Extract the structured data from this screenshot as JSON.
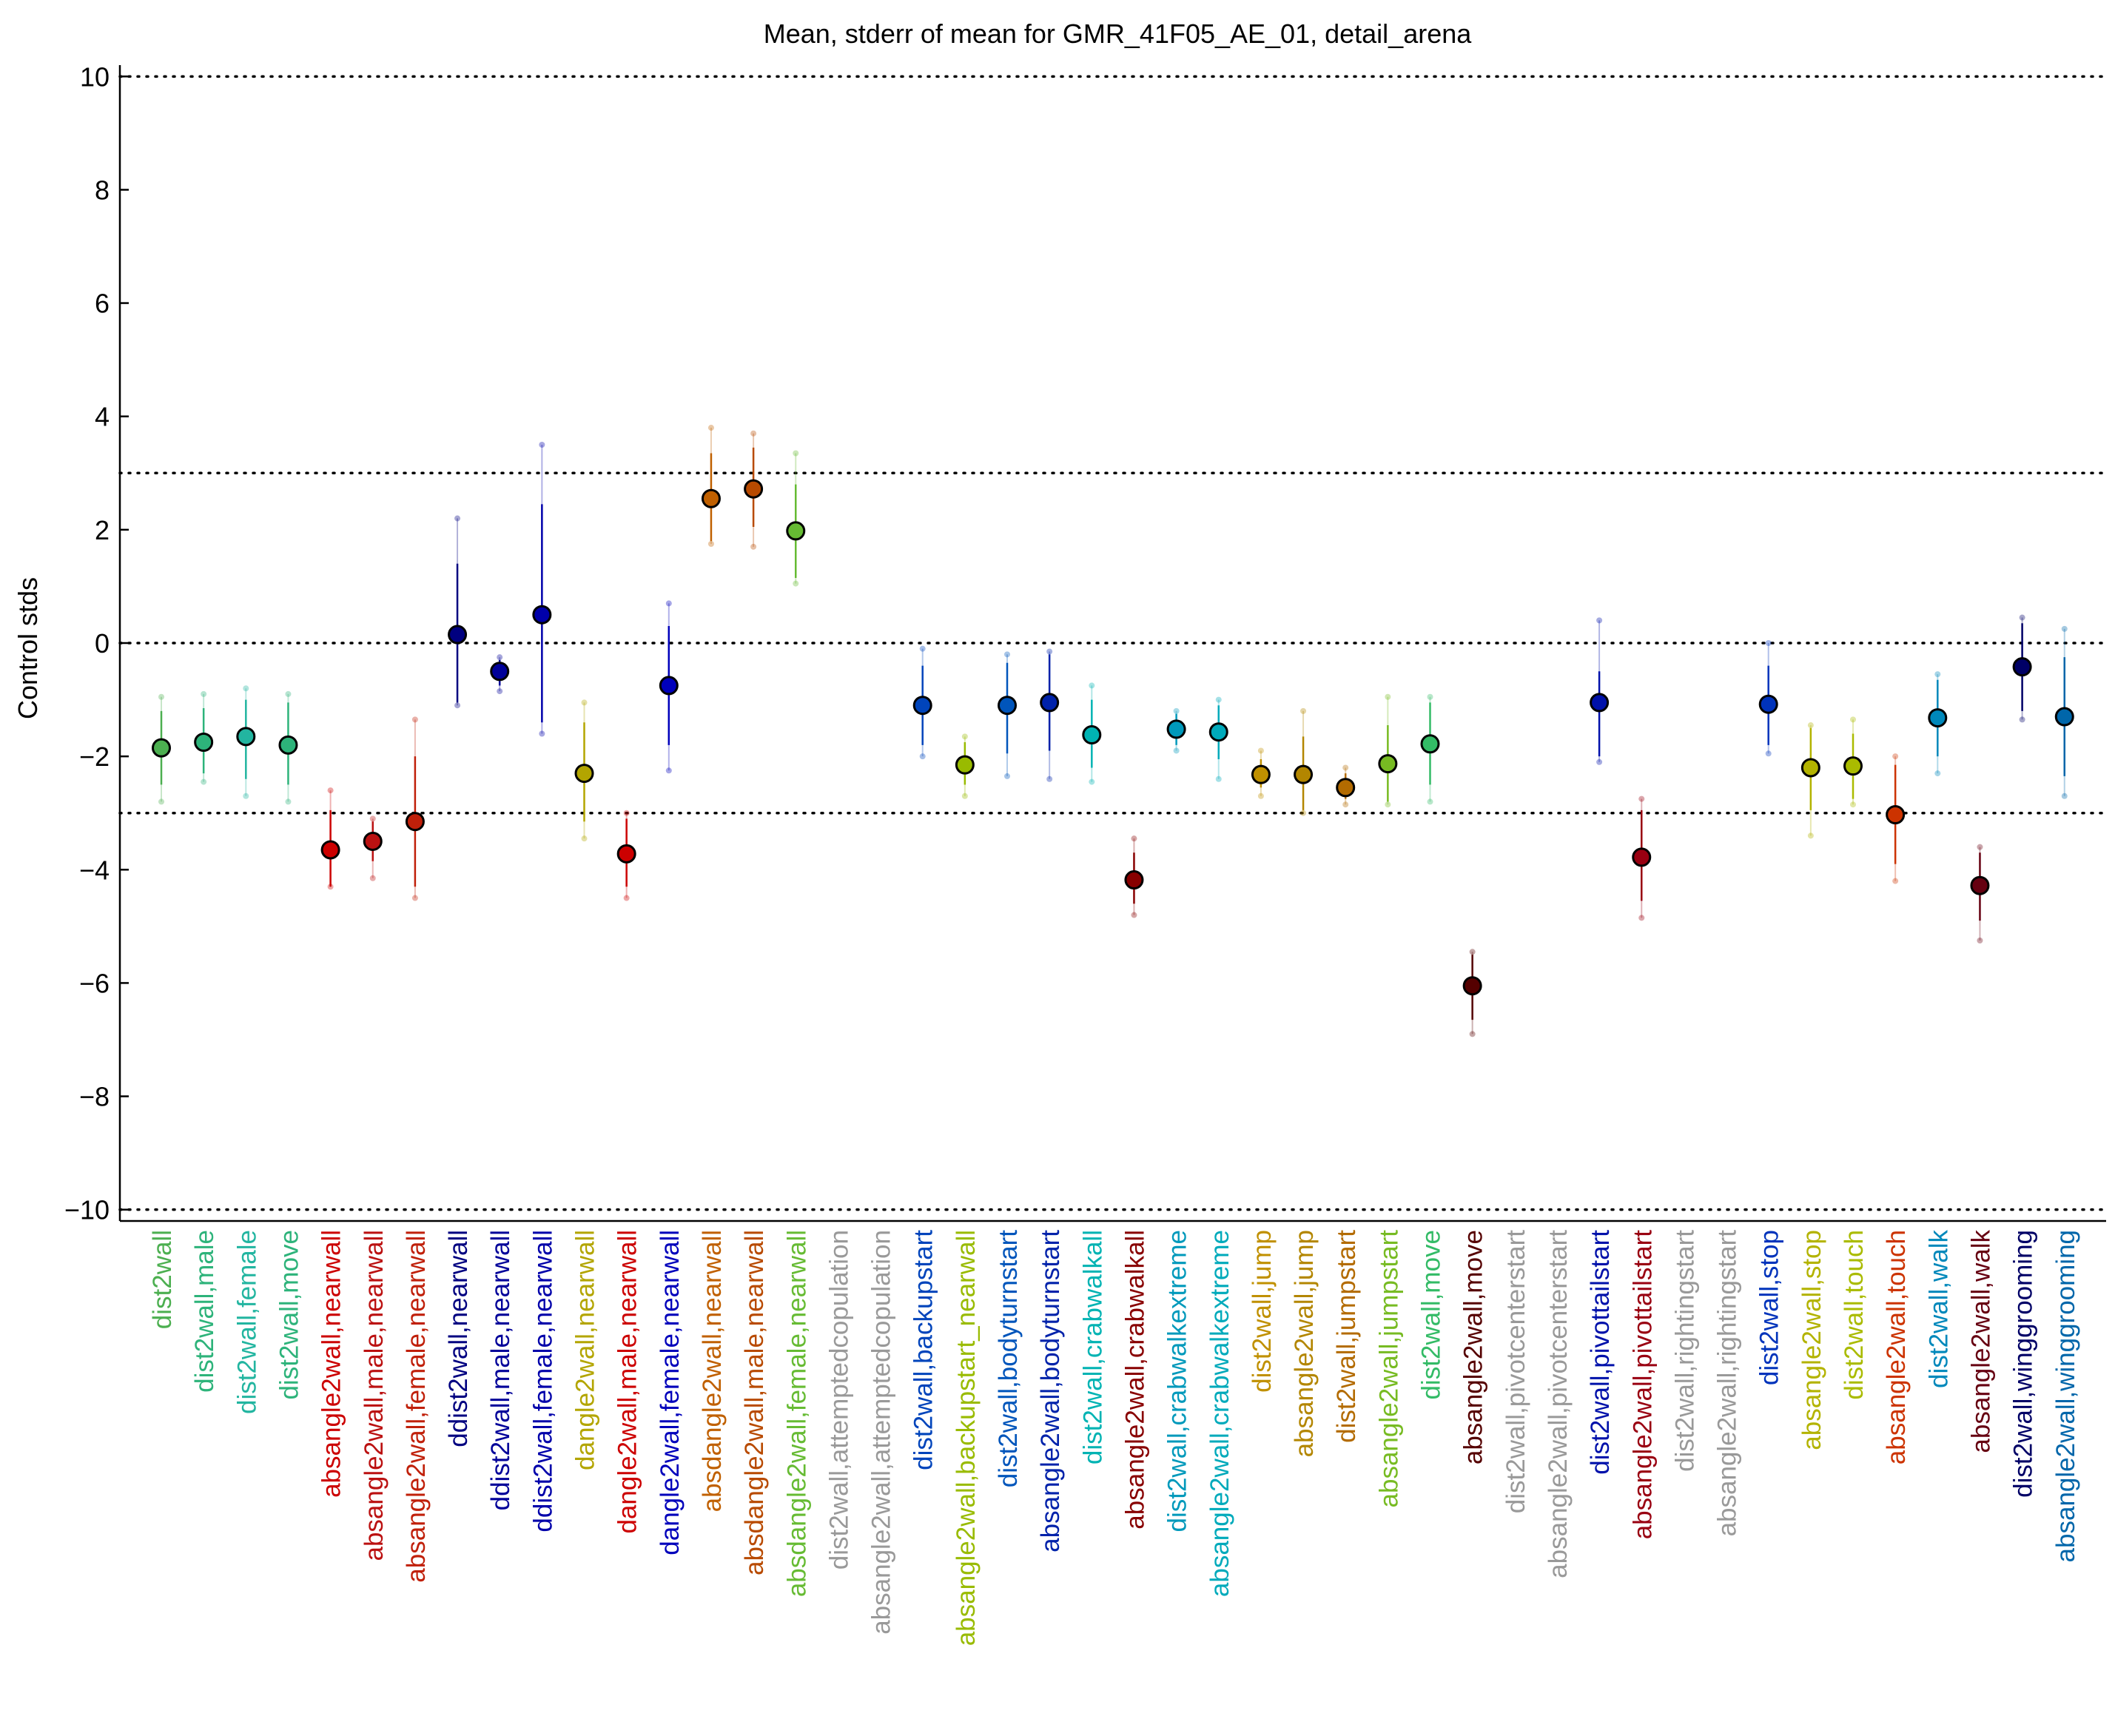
{
  "chart_data": {
    "type": "scatter",
    "title": "Mean, stderr of mean for GMR_41F05_AE_01, detail_arena",
    "ylabel": "Control stds",
    "xlabel": "",
    "ylim": [
      -10.2,
      10.2
    ],
    "yticks": [
      10,
      8,
      6,
      4,
      2,
      0,
      -2,
      -4,
      -6,
      -8,
      -10
    ],
    "ytick_labels": [
      "10",
      "8",
      "6",
      "4",
      "2",
      "0",
      "−2",
      "−4",
      "−6",
      "−8",
      "−10"
    ],
    "reference_lines": [
      10,
      3,
      0,
      -3,
      -10
    ],
    "grid": false,
    "points": [
      {
        "label": "dist2wall",
        "mean": -1.85,
        "se_low": -2.5,
        "se_high": -1.2,
        "ext_low": -2.8,
        "ext_high": -0.95,
        "color": "#4caf50"
      },
      {
        "label": "dist2wall,male",
        "mean": -1.75,
        "se_low": -2.3,
        "se_high": -1.15,
        "ext_low": -2.45,
        "ext_high": -0.9,
        "color": "#2db37a"
      },
      {
        "label": "dist2wall,female",
        "mean": -1.65,
        "se_low": -2.4,
        "se_high": -1.0,
        "ext_low": -2.7,
        "ext_high": -0.8,
        "color": "#22b5a0"
      },
      {
        "label": "dist2wall,move",
        "mean": -1.8,
        "se_low": -2.5,
        "se_high": -1.05,
        "ext_low": -2.8,
        "ext_high": -0.9,
        "color": "#2db37a"
      },
      {
        "label": "absangle2wall,nearwall",
        "mean": -3.65,
        "se_low": -4.3,
        "se_high": -2.95,
        "ext_low": -4.3,
        "ext_high": -2.6,
        "color": "#cc0000"
      },
      {
        "label": "absangle2wall,male,nearwall",
        "mean": -3.5,
        "se_low": -3.85,
        "se_high": -3.15,
        "ext_low": -4.15,
        "ext_high": -3.1,
        "color": "#bb1111"
      },
      {
        "label": "absangle2wall,female,nearwall",
        "mean": -3.15,
        "se_low": -4.3,
        "se_high": -2.0,
        "ext_low": -4.5,
        "ext_high": -1.35,
        "color": "#c0200a"
      },
      {
        "label": "ddist2wall,nearwall",
        "mean": 0.15,
        "se_low": -1.05,
        "se_high": 1.4,
        "ext_low": -1.1,
        "ext_high": 2.2,
        "color": "#000080"
      },
      {
        "label": "ddist2wall,male,nearwall",
        "mean": -0.5,
        "se_low": -0.75,
        "se_high": -0.3,
        "ext_low": -0.85,
        "ext_high": -0.25,
        "color": "#000099"
      },
      {
        "label": "ddist2wall,female,nearwall",
        "mean": 0.5,
        "se_low": -1.4,
        "se_high": 2.45,
        "ext_low": -1.6,
        "ext_high": 3.5,
        "color": "#0000aa"
      },
      {
        "label": "dangle2wall,nearwall",
        "mean": -2.3,
        "se_low": -3.15,
        "se_high": -1.4,
        "ext_low": -3.45,
        "ext_high": -1.05,
        "color": "#b3a500"
      },
      {
        "label": "dangle2wall,male,nearwall",
        "mean": -3.72,
        "se_low": -4.3,
        "se_high": -3.1,
        "ext_low": -4.5,
        "ext_high": -3.0,
        "color": "#cc0000"
      },
      {
        "label": "dangle2wall,female,nearwall",
        "mean": -0.75,
        "se_low": -1.8,
        "se_high": 0.3,
        "ext_low": -2.25,
        "ext_high": 0.7,
        "color": "#0000bb"
      },
      {
        "label": "absdangle2wall,nearwall",
        "mean": 2.55,
        "se_low": 1.8,
        "se_high": 3.35,
        "ext_low": 1.75,
        "ext_high": 3.8,
        "color": "#c06000"
      },
      {
        "label": "absdangle2wall,male,nearwall",
        "mean": 2.72,
        "se_low": 2.05,
        "se_high": 3.45,
        "ext_low": 1.7,
        "ext_high": 3.7,
        "color": "#b84a00"
      },
      {
        "label": "absdangle2wall,female,nearwall",
        "mean": 1.98,
        "se_low": 1.15,
        "se_high": 2.8,
        "ext_low": 1.05,
        "ext_high": 3.35,
        "color": "#66bb33"
      },
      {
        "label": "dist2wall,attemptedcopulation",
        "color": "#999999"
      },
      {
        "label": "absangle2wall,attemptedcopulation",
        "color": "#999999"
      },
      {
        "label": "dist2wall,backupstart",
        "mean": -1.1,
        "se_low": -1.8,
        "se_high": -0.4,
        "ext_low": -2.0,
        "ext_high": -0.1,
        "color": "#0044bb"
      },
      {
        "label": "absangle2wall,backupstart_nearwall",
        "mean": -2.15,
        "se_low": -2.5,
        "se_high": -1.75,
        "ext_low": -2.7,
        "ext_high": -1.65,
        "color": "#99bb00"
      },
      {
        "label": "dist2wall,bodyturnstart",
        "mean": -1.1,
        "se_low": -1.95,
        "se_high": -0.35,
        "ext_low": -2.35,
        "ext_high": -0.2,
        "color": "#0055bb"
      },
      {
        "label": "absangle2wall,bodyturnstart",
        "mean": -1.05,
        "se_low": -1.9,
        "se_high": -0.2,
        "ext_low": -2.4,
        "ext_high": -0.15,
        "color": "#0022aa"
      },
      {
        "label": "dist2wall,crabwalkall",
        "mean": -1.62,
        "se_low": -2.2,
        "se_high": -1.0,
        "ext_low": -2.45,
        "ext_high": -0.75,
        "color": "#00b3b3"
      },
      {
        "label": "absangle2wall,crabwalkall",
        "mean": -4.18,
        "se_low": -4.6,
        "se_high": -3.7,
        "ext_low": -4.8,
        "ext_high": -3.45,
        "color": "#880000"
      },
      {
        "label": "dist2wall,crabwalkextreme",
        "mean": -1.52,
        "se_low": -1.8,
        "se_high": -1.25,
        "ext_low": -1.9,
        "ext_high": -1.2,
        "color": "#0099bb"
      },
      {
        "label": "absangle2wall,crabwalkextreme",
        "mean": -1.57,
        "se_low": -2.05,
        "se_high": -1.1,
        "ext_low": -2.4,
        "ext_high": -1.0,
        "color": "#00aabb"
      },
      {
        "label": "dist2wall,jump",
        "mean": -2.32,
        "se_low": -2.55,
        "se_high": -2.05,
        "ext_low": -2.7,
        "ext_high": -1.9,
        "color": "#c09000"
      },
      {
        "label": "absangle2wall,jump",
        "mean": -2.32,
        "se_low": -2.95,
        "se_high": -1.65,
        "ext_low": -3.0,
        "ext_high": -1.2,
        "color": "#b38600"
      },
      {
        "label": "dist2wall,jumpstart",
        "mean": -2.55,
        "se_low": -2.75,
        "se_high": -2.3,
        "ext_low": -2.85,
        "ext_high": -2.2,
        "color": "#b36b00"
      },
      {
        "label": "absangle2wall,jumpstart",
        "mean": -2.13,
        "se_low": -2.8,
        "se_high": -1.45,
        "ext_low": -2.85,
        "ext_high": -0.95,
        "color": "#77bb22"
      },
      {
        "label": "dist2wall,move",
        "mean": -1.78,
        "se_low": -2.5,
        "se_high": -1.05,
        "ext_low": -2.8,
        "ext_high": -0.95,
        "color": "#33bb66"
      },
      {
        "label": "absangle2wall,move",
        "mean": -6.05,
        "se_low": -6.65,
        "se_high": -5.5,
        "ext_low": -6.9,
        "ext_high": -5.45,
        "color": "#550000"
      },
      {
        "label": "dist2wall,pivotcenterstart",
        "color": "#999999"
      },
      {
        "label": "absangle2wall,pivotcenterstart",
        "color": "#999999"
      },
      {
        "label": "dist2wall,pivottailstart",
        "mean": -1.05,
        "se_low": -2.0,
        "se_high": -0.5,
        "ext_low": -2.1,
        "ext_high": 0.4,
        "color": "#0011aa"
      },
      {
        "label": "absangle2wall,pivottailstart",
        "mean": -3.78,
        "se_low": -4.55,
        "se_high": -2.95,
        "ext_low": -4.85,
        "ext_high": -2.75,
        "color": "#990011"
      },
      {
        "label": "dist2wall,rightingstart",
        "color": "#999999"
      },
      {
        "label": "absangle2wall,rightingstart",
        "color": "#999999"
      },
      {
        "label": "dist2wall,stop",
        "mean": -1.08,
        "se_low": -1.8,
        "se_high": -0.4,
        "ext_low": -1.95,
        "ext_high": 0.0,
        "color": "#0033bb"
      },
      {
        "label": "absangle2wall,stop",
        "mean": -2.2,
        "se_low": -2.95,
        "se_high": -1.5,
        "ext_low": -3.4,
        "ext_high": -1.45,
        "color": "#b3b300"
      },
      {
        "label": "dist2wall,touch",
        "mean": -2.17,
        "se_low": -2.75,
        "se_high": -1.6,
        "ext_low": -2.85,
        "ext_high": -1.35,
        "color": "#aabb00"
      },
      {
        "label": "absangle2wall,touch",
        "mean": -3.03,
        "se_low": -3.9,
        "se_high": -2.15,
        "ext_low": -4.2,
        "ext_high": -2.0,
        "color": "#cc3300"
      },
      {
        "label": "dist2wall,walk",
        "mean": -1.32,
        "se_low": -2.0,
        "se_high": -0.65,
        "ext_low": -2.3,
        "ext_high": -0.55,
        "color": "#0088bb"
      },
      {
        "label": "absangle2wall,walk",
        "mean": -4.28,
        "se_low": -4.9,
        "se_high": -3.7,
        "ext_low": -5.25,
        "ext_high": -3.6,
        "color": "#660011"
      },
      {
        "label": "dist2wall,winggrooming",
        "mean": -0.42,
        "se_low": -1.2,
        "se_high": 0.35,
        "ext_low": -1.35,
        "ext_high": 0.45,
        "color": "#000066"
      },
      {
        "label": "absangle2wall,winggrooming",
        "mean": -1.3,
        "se_low": -2.35,
        "se_high": -0.25,
        "ext_low": -2.7,
        "ext_high": 0.25,
        "color": "#0066aa"
      }
    ]
  }
}
